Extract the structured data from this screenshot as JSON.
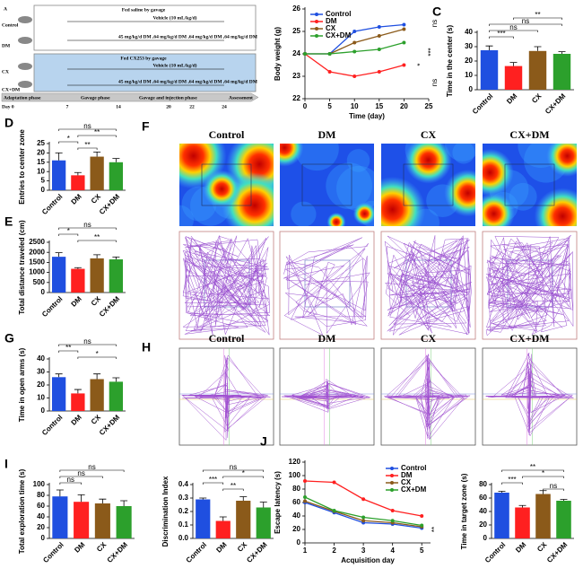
{
  "diagram": {
    "panel": "A",
    "groups": [
      "Control",
      "DM",
      "CX",
      "CX+DM"
    ],
    "top_title": "Fed saline by gavage",
    "bottom_title": "Fed CX253 by gavage",
    "vehicle": "Vehicle (10 mL/kg/d)",
    "dm_dose": "45 mg/kg/d DM ,64 mg/kg/d DM ,64 mg/kg/d DM ,64 mg/kg/d DM",
    "phases": [
      "Adaptation phase",
      "Gavage phase",
      "Gavage and injection phase",
      "Assessment"
    ],
    "days": [
      "Day 0",
      "7",
      "14",
      "20",
      "22",
      "24"
    ]
  },
  "image_panels": [
    {
      "panel": "F",
      "titles": [
        "Control",
        "DM",
        "CX",
        "CX+DM"
      ]
    },
    {
      "panel": "H",
      "titles": [
        "Control",
        "DM",
        "CX",
        "CX+DM"
      ]
    }
  ],
  "chart_data": [
    {
      "type": "line",
      "panel": "B",
      "x_label": "Time (day)",
      "y_label": "Body weight (g)",
      "x": [
        0,
        5,
        10,
        15,
        20
      ],
      "xlim": [
        0,
        25
      ],
      "xticks": [
        0,
        5,
        10,
        15,
        20,
        25
      ],
      "ylim": [
        22,
        26
      ],
      "yticks": [
        22,
        23,
        24,
        25,
        26
      ],
      "series": [
        {
          "name": "Control",
          "color": "#1f4fe0",
          "values": [
            24,
            24,
            25,
            25.2,
            25.3
          ]
        },
        {
          "name": "DM",
          "color": "#ff2020",
          "values": [
            24,
            23.2,
            23,
            23.2,
            23.5
          ]
        },
        {
          "name": "CX",
          "color": "#8b5a1a",
          "values": [
            24,
            24,
            24.5,
            24.8,
            25.1
          ]
        },
        {
          "name": "CX+DM",
          "color": "#2ca02c",
          "values": [
            24,
            24,
            24.1,
            24.2,
            24.5
          ]
        }
      ],
      "annotations": [
        "ns",
        "***",
        "*",
        "ns"
      ]
    },
    {
      "type": "bar",
      "panel": "C",
      "y_label": "Time in the center (s)",
      "categories": [
        "Control",
        "DM",
        "CX",
        "CX+DM"
      ],
      "values": [
        27.5,
        16.5,
        27,
        25
      ],
      "errors": [
        3,
        2.5,
        3,
        1.5
      ],
      "colors": [
        "#1f4fe0",
        "#ff2020",
        "#8b5a1a",
        "#2ca02c"
      ],
      "ylim": [
        0,
        40
      ],
      "yticks": [
        0,
        10,
        20,
        30,
        40
      ],
      "significance": [
        "**",
        "ns",
        "ns",
        "***"
      ]
    },
    {
      "type": "bar",
      "panel": "D",
      "y_label": "Entries to center zone",
      "categories": [
        "Control",
        "DM",
        "CX",
        "CX+DM"
      ],
      "values": [
        16,
        8,
        18,
        15
      ],
      "errors": [
        4,
        1.5,
        2.5,
        2
      ],
      "colors": [
        "#1f4fe0",
        "#ff2020",
        "#8b5a1a",
        "#2ca02c"
      ],
      "ylim": [
        0,
        25
      ],
      "yticks": [
        0,
        5,
        10,
        15,
        20,
        25
      ],
      "significance": [
        "ns",
        "**",
        "*",
        "**"
      ]
    },
    {
      "type": "bar",
      "panel": "E",
      "y_label": "Total distance traveled (cm)",
      "categories": [
        "Control",
        "DM",
        "CX",
        "CX+DM"
      ],
      "values": [
        1780,
        1180,
        1700,
        1650
      ],
      "errors": [
        200,
        60,
        180,
        120
      ],
      "colors": [
        "#1f4fe0",
        "#ff2020",
        "#8b5a1a",
        "#2ca02c"
      ],
      "ylim": [
        0,
        2500
      ],
      "yticks": [
        0,
        500,
        1000,
        1500,
        2000,
        2500
      ],
      "significance": [
        "ns",
        "*",
        "**"
      ]
    },
    {
      "type": "bar",
      "panel": "G",
      "y_label": "Time in open arms (s)",
      "categories": [
        "Control",
        "DM",
        "CX",
        "CX+DM"
      ],
      "values": [
        26,
        13.5,
        24.5,
        22.5
      ],
      "errors": [
        2.5,
        3,
        4,
        3
      ],
      "colors": [
        "#1f4fe0",
        "#ff2020",
        "#8b5a1a",
        "#2ca02c"
      ],
      "ylim": [
        0,
        40
      ],
      "yticks": [
        0,
        10,
        20,
        30,
        40
      ],
      "significance": [
        "ns",
        "**",
        "*"
      ]
    },
    {
      "type": "bar",
      "panel": "I",
      "y_label": "Total exploration time (s)",
      "categories": [
        "Control",
        "DM",
        "CX",
        "CX+DM"
      ],
      "values": [
        78,
        68,
        65,
        60
      ],
      "errors": [
        12,
        13,
        8,
        10
      ],
      "colors": [
        "#1f4fe0",
        "#ff2020",
        "#8b5a1a",
        "#2ca02c"
      ],
      "ylim": [
        0,
        100
      ],
      "yticks": [
        0,
        20,
        40,
        60,
        80,
        100
      ],
      "significance": [
        "ns",
        "ns",
        "ns"
      ]
    },
    {
      "type": "bar",
      "y_label": "Discrimination Index",
      "categories": [
        "Control",
        "DM",
        "CX",
        "CX+DM"
      ],
      "values": [
        0.29,
        0.13,
        0.28,
        0.23
      ],
      "errors": [
        0.01,
        0.03,
        0.03,
        0.04
      ],
      "colors": [
        "#1f4fe0",
        "#ff2020",
        "#8b5a1a",
        "#2ca02c"
      ],
      "ylim": [
        0,
        0.4
      ],
      "yticks": [
        {
          "value": 0,
          "label": "0.0"
        },
        0.1,
        0.2,
        0.3,
        0.4
      ],
      "significance": [
        "ns",
        "*",
        "***",
        "**"
      ]
    },
    {
      "type": "line",
      "panel": "J",
      "x_label": "Acquisition day",
      "y_label": "Escape latency (s)",
      "x": [
        1,
        2,
        3,
        4,
        5
      ],
      "xlim": [
        1,
        5.3
      ],
      "xticks": [
        1,
        2,
        3,
        4,
        5
      ],
      "ylim": [
        0,
        120
      ],
      "yticks": [
        0,
        20,
        40,
        60,
        80,
        100,
        120
      ],
      "series": [
        {
          "name": "Control",
          "color": "#1f4fe0",
          "values": [
            60,
            45,
            30,
            28,
            22
          ]
        },
        {
          "name": "DM",
          "color": "#ff2020",
          "values": [
            92,
            90,
            65,
            48,
            40
          ]
        },
        {
          "name": "CX",
          "color": "#8b5a1a",
          "values": [
            62,
            47,
            33,
            30,
            24
          ]
        },
        {
          "name": "CX+DM",
          "color": "#2ca02c",
          "values": [
            68,
            48,
            38,
            33,
            26
          ]
        }
      ],
      "annotations": [
        "**"
      ]
    },
    {
      "type": "bar",
      "y_label": "Time in target zone (s)",
      "categories": [
        "Control",
        "DM",
        "CX",
        "CX+DM"
      ],
      "values": [
        68,
        46,
        66,
        56
      ],
      "errors": [
        2,
        3,
        5,
        2
      ],
      "colors": [
        "#1f4fe0",
        "#ff2020",
        "#8b5a1a",
        "#2ca02c"
      ],
      "ylim": [
        0,
        80
      ],
      "yticks": [
        0,
        20,
        40,
        60,
        80
      ],
      "significance": [
        "**",
        "*",
        "***",
        "ns"
      ]
    }
  ]
}
